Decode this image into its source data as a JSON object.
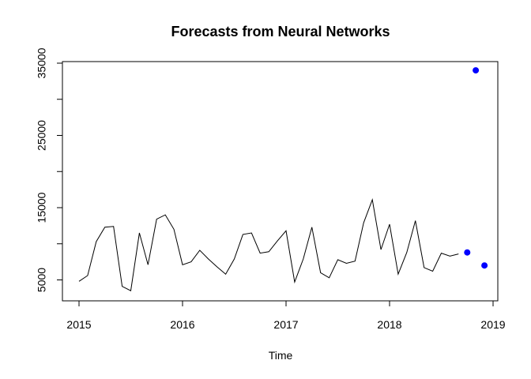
{
  "chart_data": {
    "type": "line",
    "title": "Forecasts from Neural Networks",
    "xlabel": "Time",
    "ylabel": "",
    "xlim": [
      2014.98,
      2019.0
    ],
    "ylim": [
      3000,
      35000
    ],
    "x_ticks": [
      2015,
      2016,
      2017,
      2018,
      2019
    ],
    "y_ticks": [
      5000,
      15000,
      25000,
      35000
    ],
    "x_tick_labels": [
      "2015",
      "2016",
      "2017",
      "2018",
      "2019"
    ],
    "y_tick_labels": [
      "5000",
      "15000",
      "25000",
      "35000"
    ],
    "grid": false,
    "series": [
      {
        "kind": "line",
        "color": "#000000",
        "x_start": 2015.0,
        "step": 0.0833333,
        "values": [
          4800,
          5600,
          10300,
          12300,
          12400,
          4100,
          3500,
          11500,
          7100,
          13400,
          14000,
          12000,
          7100,
          7500,
          9100,
          7900,
          6800,
          5800,
          7900,
          11300,
          11500,
          8700,
          8900,
          10400,
          11800,
          4700,
          7900,
          12300,
          6000,
          5300,
          7800,
          7300,
          7600,
          12900,
          16100,
          9200,
          12700,
          5800,
          8800,
          13200,
          6700,
          6200,
          8700,
          8300,
          8600
        ]
      },
      {
        "kind": "points",
        "color": "#0000ff",
        "x": [
          2018.75,
          2018.833,
          2018.917
        ],
        "values": [
          8800,
          34000,
          7000
        ]
      }
    ]
  }
}
